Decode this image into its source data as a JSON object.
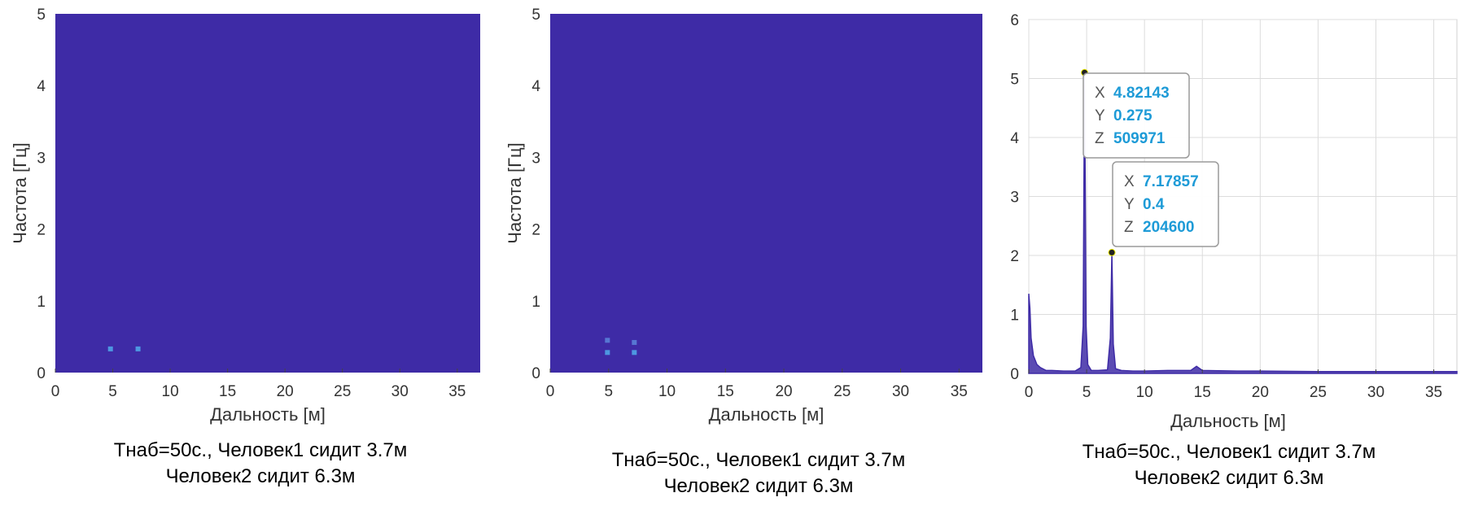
{
  "chart_data": [
    {
      "type": "heatmap",
      "xlabel": "Дальность [м]",
      "ylabel": "Частота [Гц]",
      "xlim": [
        0,
        37
      ],
      "ylim": [
        0,
        5
      ],
      "x_ticks": [
        0,
        5,
        10,
        15,
        20,
        25,
        30,
        35
      ],
      "y_ticks": [
        0,
        1,
        2,
        3,
        4,
        5
      ],
      "background_color": "#3E2BA6",
      "hotspots": [
        {
          "x": 4.8,
          "y": 0.33,
          "color": "#4FA3E8"
        },
        {
          "x": 7.2,
          "y": 0.33,
          "color": "#4FA3E8"
        }
      ],
      "caption": [
        "Тнаб=50с., Человек1 сидит 3.7м",
        "Человек2 сидит 6.3м"
      ]
    },
    {
      "type": "heatmap",
      "xlabel": "Дальность [м]",
      "ylabel": "Частота [Гц]",
      "xlim": [
        0,
        37
      ],
      "ylim": [
        0,
        5
      ],
      "x_ticks": [
        0,
        5,
        10,
        15,
        20,
        25,
        30,
        35
      ],
      "y_ticks": [
        0,
        1,
        2,
        3,
        4,
        5
      ],
      "background_color": "#3E2BA6",
      "hotspots": [
        {
          "x": 4.9,
          "y": 0.45,
          "color": "#5A7FD8"
        },
        {
          "x": 4.9,
          "y": 0.28,
          "color": "#4FA3E8"
        },
        {
          "x": 7.2,
          "y": 0.42,
          "color": "#5A7FD8"
        },
        {
          "x": 7.2,
          "y": 0.28,
          "color": "#4FA3E8"
        }
      ],
      "caption": [
        "Тнаб=50с., Человек1 сидит 3.7м",
        "Человек2 сидит 6.3м"
      ]
    },
    {
      "type": "line",
      "xlabel": "Дальность [м]",
      "ylabel": "",
      "xlim": [
        0,
        37
      ],
      "ylim": [
        0,
        6
      ],
      "x_ticks": [
        0,
        5,
        10,
        15,
        20,
        25,
        30,
        35
      ],
      "y_ticks": [
        0,
        1,
        2,
        3,
        4,
        5,
        6
      ],
      "grid": true,
      "line_color": "#3E2BA6",
      "x": [
        0,
        0.1,
        0.2,
        0.4,
        0.7,
        1.0,
        1.5,
        2.0,
        3.0,
        4.0,
        4.5,
        4.7,
        4.82143,
        4.95,
        5.1,
        5.4,
        6.0,
        6.8,
        7.05,
        7.17857,
        7.3,
        7.5,
        8.0,
        9.0,
        10.0,
        12.0,
        14.0,
        14.5,
        15.0,
        18.0,
        20.0,
        25.0,
        30.0,
        35.0,
        37.0
      ],
      "values": [
        1.35,
        1.1,
        0.6,
        0.3,
        0.15,
        0.1,
        0.05,
        0.05,
        0.04,
        0.04,
        0.1,
        0.8,
        5.1,
        0.8,
        0.15,
        0.05,
        0.05,
        0.06,
        0.6,
        2.05,
        0.5,
        0.08,
        0.05,
        0.04,
        0.04,
        0.05,
        0.05,
        0.12,
        0.05,
        0.04,
        0.04,
        0.03,
        0.03,
        0.03,
        0.03
      ],
      "datatips": [
        {
          "x": 4.82143,
          "plot_y": 5.1,
          "x_label": "X",
          "x_value": "4.82143",
          "y_label": "Y",
          "y_value": "0.275",
          "z_label": "Z",
          "z_value": "509971"
        },
        {
          "x": 7.17857,
          "plot_y": 2.05,
          "x_label": "X",
          "x_value": "7.17857",
          "y_label": "Y",
          "y_value": "0.4",
          "z_label": "Z",
          "z_value": "204600"
        }
      ],
      "caption": [
        "Тнаб=50с., Человек1 сидит 3.7м",
        "Человек2 сидит 6.3м"
      ]
    }
  ]
}
